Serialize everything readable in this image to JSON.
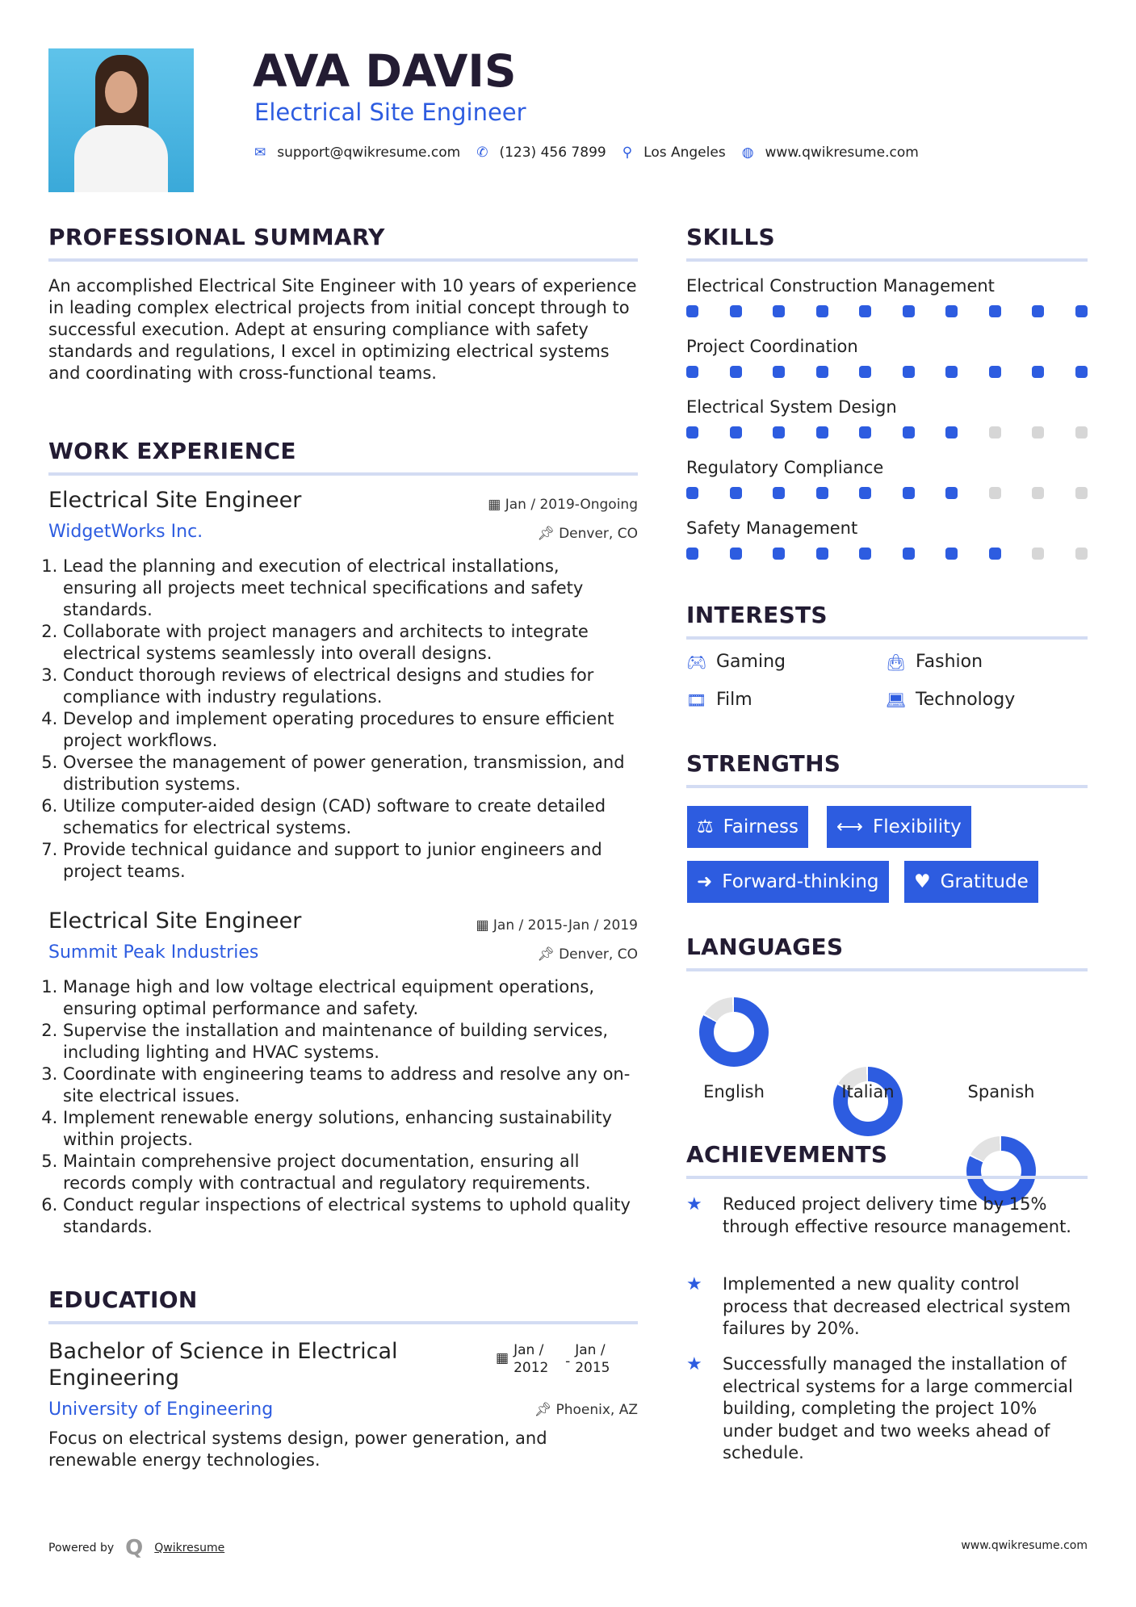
{
  "header": {
    "name": "AVA DAVIS",
    "title": "Electrical Site Engineer",
    "contacts": [
      {
        "icon": "envelope-icon",
        "text": "support@qwikresume.com"
      },
      {
        "icon": "phone-icon",
        "text": "(123) 456 7899"
      },
      {
        "icon": "map-pin-icon",
        "text": "Los Angeles"
      },
      {
        "icon": "globe-icon",
        "text": "www.qwikresume.com"
      }
    ]
  },
  "summary": {
    "heading": "PROFESSIONAL SUMMARY",
    "text": "An accomplished Electrical Site Engineer with 10 years of experience in leading complex electrical projects from initial concept through to successful execution. Adept at ensuring compliance with safety standards and regulations, I excel in optimizing electrical systems and coordinating with cross-functional teams."
  },
  "experience": {
    "heading": "WORK EXPERIENCE",
    "jobs": [
      {
        "title": "Electrical Site Engineer",
        "date": "Jan / 2019-Ongoing",
        "company": "WidgetWorks Inc.",
        "location": "Denver, CO",
        "bullets": [
          "Lead the planning and execution of electrical installations, ensuring all projects meet technical specifications and safety standards.",
          "Collaborate with project managers and architects to integrate electrical systems seamlessly into overall designs.",
          "Conduct thorough reviews of electrical designs and studies for compliance with industry regulations.",
          "Develop and implement operating procedures to ensure efficient project workflows.",
          "Oversee the management of power generation, transmission, and distribution systems.",
          "Utilize computer-aided design (CAD) software to create detailed schematics for electrical systems.",
          "Provide technical guidance and support to junior engineers and project teams."
        ]
      },
      {
        "title": "Electrical Site Engineer",
        "date": "Jan / 2015-Jan / 2019",
        "company": "Summit Peak Industries",
        "location": "Denver, CO",
        "bullets": [
          "Manage high and low voltage electrical equipment operations, ensuring optimal performance and safety.",
          "Supervise the installation and maintenance of building services, including lighting and HVAC systems.",
          "Coordinate with engineering teams to address and resolve any on-site electrical issues.",
          "Implement renewable energy solutions, enhancing sustainability within projects.",
          "Maintain comprehensive project documentation, ensuring all records comply with contractual and regulatory requirements.",
          "Conduct regular inspections of electrical systems to uphold quality standards."
        ]
      }
    ]
  },
  "education": {
    "heading": "EDUCATION",
    "degree": "Bachelor of Science in Electrical Engineering",
    "start": "Jan / 2012",
    "end": "Jan / 2015",
    "school": "University of Engineering",
    "location": "Phoenix, AZ",
    "description": "Focus on electrical systems design, power generation, and renewable energy technologies."
  },
  "skills": {
    "heading": "SKILLS",
    "max": 10,
    "items": [
      {
        "name": "Electrical Construction Management",
        "level": 10
      },
      {
        "name": "Project Coordination",
        "level": 10
      },
      {
        "name": "Electrical System Design",
        "level": 7
      },
      {
        "name": "Regulatory Compliance",
        "level": 7
      },
      {
        "name": "Safety Management",
        "level": 8
      }
    ]
  },
  "interests": {
    "heading": "INTERESTS",
    "items": [
      {
        "icon": "gamepad-icon",
        "label": "Gaming"
      },
      {
        "icon": "shopping-bag-icon",
        "label": "Fashion"
      },
      {
        "icon": "film-icon",
        "label": "Film"
      },
      {
        "icon": "laptop-icon",
        "label": "Technology"
      }
    ]
  },
  "strengths": {
    "heading": "STRENGTHS",
    "items": [
      {
        "icon": "balance-scale-icon",
        "label": "Fairness"
      },
      {
        "icon": "arrows-horizontal-icon",
        "label": "Flexibility"
      },
      {
        "icon": "arrow-right-icon",
        "label": "Forward-thinking"
      },
      {
        "icon": "heart-icon",
        "label": "Gratitude"
      }
    ]
  },
  "languages": {
    "heading": "LANGUAGES",
    "items": [
      {
        "label": "English",
        "level": 0.83
      },
      {
        "label": "Italian",
        "level": 0.83
      },
      {
        "label": "Spanish",
        "level": 0.82
      }
    ]
  },
  "achievements": {
    "heading": "ACHIEVEMENTS",
    "items": [
      "Reduced project delivery time by 15% through effective resource management.",
      "Implemented a new quality control process that decreased electrical system failures by 20%.",
      "Successfully managed the installation of electrical systems for a large commercial building, completing the project 10% under budget and two weeks ahead of schedule."
    ]
  },
  "footer": {
    "powered_by": "Powered by",
    "brand": "Qwikresume",
    "url": "www.qwikresume.com"
  },
  "colors": {
    "accent": "#2d5ce0",
    "heading": "#231c33",
    "rule": "#d3dcf3",
    "inactive": "#d6d6d6"
  }
}
